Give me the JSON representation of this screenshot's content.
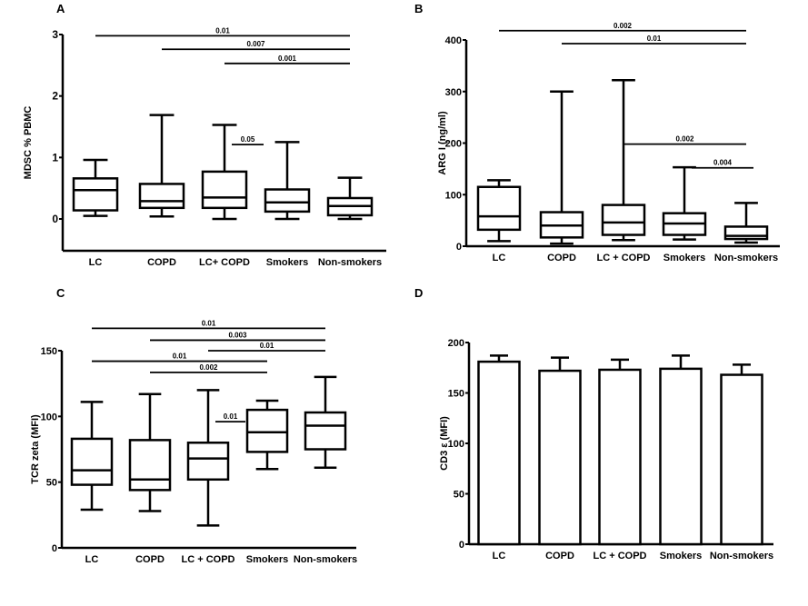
{
  "chart_data": [
    {
      "panel": "A",
      "type": "box",
      "ylabel": "MDSC % PBMC",
      "ylim": [
        -0.5,
        3
      ],
      "yticks": [
        0,
        1,
        2,
        3
      ],
      "categories": [
        "LC",
        "COPD",
        "LC+ COPD",
        "Smokers",
        "Non-smokers"
      ],
      "boxes": [
        {
          "min": 0.05,
          "q1": 0.14,
          "median": 0.47,
          "q3": 0.66,
          "max": 0.96
        },
        {
          "min": 0.04,
          "q1": 0.18,
          "median": 0.29,
          "q3": 0.57,
          "max": 1.69
        },
        {
          "min": 0.0,
          "q1": 0.18,
          "median": 0.35,
          "q3": 0.77,
          "max": 1.53
        },
        {
          "min": 0.0,
          "q1": 0.12,
          "median": 0.27,
          "q3": 0.48,
          "max": 1.25
        },
        {
          "min": 0.0,
          "q1": 0.06,
          "median": 0.21,
          "q3": 0.34,
          "max": 0.67
        }
      ],
      "comparisons": [
        {
          "from": 0,
          "to": 4,
          "y": 2.98,
          "p": "0.01"
        },
        {
          "from": 1,
          "to": 4,
          "y": 2.76,
          "p": "0.007"
        },
        {
          "from": 2,
          "to": 4,
          "y": 2.53,
          "p": "0.001"
        },
        {
          "from": 2,
          "to": 3,
          "y": 1.21,
          "p": "0.05"
        }
      ]
    },
    {
      "panel": "B",
      "type": "box",
      "ylabel": "ARG I (ng/ml)",
      "ylim": [
        0,
        400
      ],
      "yticks": [
        0,
        100,
        200,
        300,
        400
      ],
      "categories": [
        "LC",
        "COPD",
        "LC + COPD",
        "Smokers",
        "Non-smokers"
      ],
      "boxes": [
        {
          "min": 10,
          "q1": 32,
          "median": 58,
          "q3": 115,
          "max": 128
        },
        {
          "min": 5,
          "q1": 17,
          "median": 40,
          "q3": 66,
          "max": 300
        },
        {
          "min": 12,
          "q1": 22,
          "median": 46,
          "q3": 80,
          "max": 322
        },
        {
          "min": 13,
          "q1": 22,
          "median": 44,
          "q3": 64,
          "max": 153
        },
        {
          "min": 7,
          "q1": 14,
          "median": 20,
          "q3": 38,
          "max": 84
        }
      ],
      "comparisons": [
        {
          "from": 0,
          "to": 4,
          "y": 418,
          "p": "0.002"
        },
        {
          "from": 1,
          "to": 4,
          "y": 393,
          "p": "0.01"
        },
        {
          "from": 2,
          "to": 4,
          "y": 198,
          "p": "0.002"
        },
        {
          "from": 3,
          "to": 4,
          "y": 152,
          "p": "0.004"
        }
      ]
    },
    {
      "panel": "C",
      "type": "box",
      "ylabel": "TCR zeta (MFI)",
      "ylim": [
        0,
        150
      ],
      "yticks": [
        0,
        50,
        100,
        150
      ],
      "categories": [
        "LC",
        "COPD",
        "LC + COPD",
        "Smokers",
        "Non-smokers"
      ],
      "boxes": [
        {
          "min": 29,
          "q1": 48,
          "median": 59,
          "q3": 83,
          "max": 111
        },
        {
          "min": 28,
          "q1": 44,
          "median": 52,
          "q3": 82,
          "max": 117
        },
        {
          "min": 17,
          "q1": 52,
          "median": 68,
          "q3": 80,
          "max": 120
        },
        {
          "min": 60,
          "q1": 73,
          "median": 88,
          "q3": 105,
          "max": 112
        },
        {
          "min": 61,
          "q1": 75,
          "median": 93,
          "q3": 103,
          "max": 130
        }
      ],
      "comparisons": [
        {
          "from": 0,
          "to": 4,
          "y": 167,
          "p": "0.01"
        },
        {
          "from": 1,
          "to": 4,
          "y": 158,
          "p": "0.003"
        },
        {
          "from": 2,
          "to": 4,
          "y": 150,
          "p": "0.01"
        },
        {
          "from": 0,
          "to": 3,
          "y": 142,
          "p": "0.01"
        },
        {
          "from": 1,
          "to": 3,
          "y": 133.5,
          "p": "0.002"
        },
        {
          "from": 2,
          "to": 3,
          "y": 96,
          "p": "0.01"
        }
      ]
    },
    {
      "panel": "D",
      "type": "bar",
      "ylabel": "CD3 ε (MFI)",
      "ylim": [
        0,
        200
      ],
      "yticks": [
        0,
        50,
        100,
        150,
        200
      ],
      "categories": [
        "LC",
        "COPD",
        "LC + COPD",
        "Smokers",
        "Non-smokers"
      ],
      "values": [
        181,
        172,
        173,
        174,
        168
      ],
      "error_upper": [
        187,
        185,
        183,
        187,
        178
      ]
    }
  ]
}
